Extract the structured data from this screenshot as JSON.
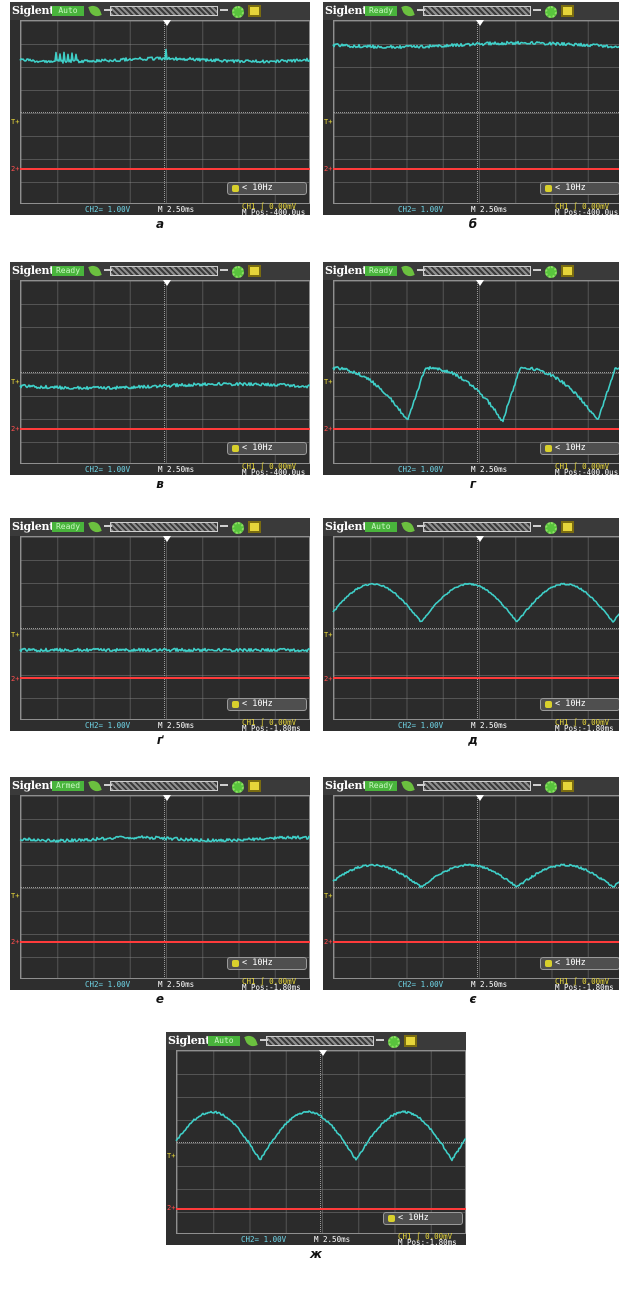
{
  "app": {
    "brand": "Siglent",
    "ch1_marker": "T+",
    "ch2_marker": "2+"
  },
  "panels": [
    {
      "caption": "а",
      "status": "Auto",
      "status_color": "#49b43c",
      "ch2": "CH2= 1.00V",
      "timebase": "M 2.50ms",
      "ch1": "CH1 ∫ 0.00mV",
      "mpos": "M Pos:-400.0μs",
      "freq": "< 10Hz",
      "trace": "flat-high-spiky"
    },
    {
      "caption": "б",
      "status": "Ready",
      "status_color": "#49b43c",
      "ch2": "CH2= 1.00V",
      "timebase": "M 2.50ms",
      "ch1": "CH1 ∫ 0.00mV",
      "mpos": "M Pos:-400.0μs",
      "freq": "< 10Hz",
      "trace": "flat-top"
    },
    {
      "caption": "в",
      "status": "Ready",
      "status_color": "#49b43c",
      "ch2": "CH2= 1.00V",
      "timebase": "M 2.50ms",
      "ch1": "CH1 ∫ 0.00mV",
      "mpos": "M Pos:-400.0μs",
      "freq": "< 10Hz",
      "trace": "flat-mid"
    },
    {
      "caption": "г",
      "status": "Ready",
      "status_color": "#49b43c",
      "ch2": "CH2= 1.00V",
      "timebase": "M 2.50ms",
      "ch1": "CH1 ∫ 0.00mV",
      "mpos": "M Pos:-400.0μs",
      "freq": "< 10Hz",
      "trace": "sawtooth"
    },
    {
      "caption": "ґ",
      "status": "Ready",
      "status_color": "#49b43c",
      "ch2": "CH2= 1.00V",
      "timebase": "M 2.50ms",
      "ch1": "CH1 ∫ 0.00mV",
      "mpos": "M Pos:-1.80ms",
      "freq": "< 10Hz",
      "trace": "flat-low"
    },
    {
      "caption": "д",
      "status": "Auto",
      "status_color": "#49b43c",
      "ch2": "CH2= 1.00V",
      "timebase": "M 2.50ms",
      "ch1": "CH1 ∫ 0.00mV",
      "mpos": "M Pos:-1.80ms",
      "freq": "< 10Hz",
      "trace": "arches-large"
    },
    {
      "caption": "е",
      "status": "Armed",
      "status_color": "#49b43c",
      "ch2": "CH2= 1.00V",
      "timebase": "M 2.50ms",
      "ch1": "CH1 ∫ 0.00mV",
      "mpos": "M Pos:-1.80ms",
      "freq": "< 10Hz",
      "trace": "flat-high2"
    },
    {
      "caption": "є",
      "status": "Ready",
      "status_color": "#49b43c",
      "ch2": "CH2= 1.00V",
      "timebase": "M 2.50ms",
      "ch1": "CH1 ∫ 0.00mV",
      "mpos": "M Pos:-1.80ms",
      "freq": "< 10Hz",
      "trace": "arches-small"
    },
    {
      "caption": "ж",
      "status": "Auto",
      "status_color": "#49b43c",
      "ch2": "CH2= 1.00V",
      "timebase": "M 2.50ms",
      "ch1": "CH1 ∫ 0.00mV",
      "mpos": "M Pos:-1.80ms",
      "freq": "< 10Hz",
      "trace": "cusps"
    }
  ],
  "colors": {
    "trace": "#3fd0c9",
    "ch2_line": "#ff3b3b",
    "accent": "#e6d53a"
  }
}
